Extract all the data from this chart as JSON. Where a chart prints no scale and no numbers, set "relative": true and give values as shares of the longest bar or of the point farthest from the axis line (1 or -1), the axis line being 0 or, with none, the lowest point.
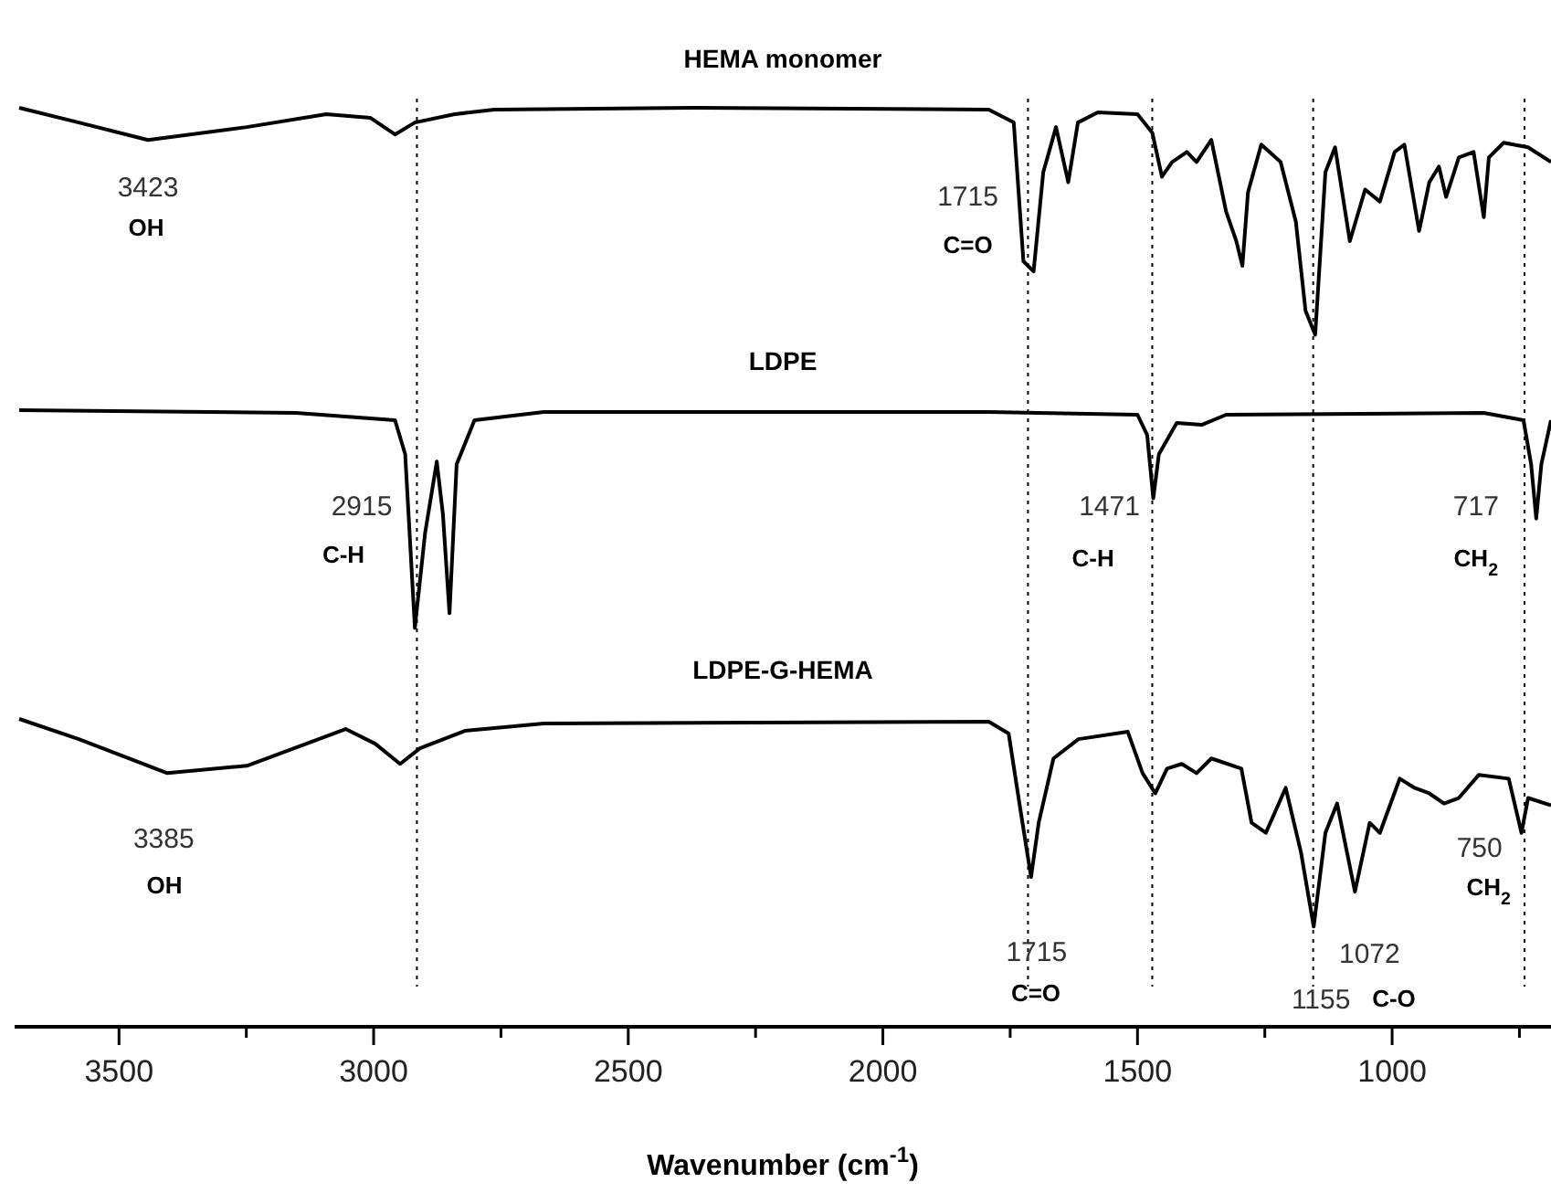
{
  "chart_data": {
    "type": "line",
    "relative": true,
    "xlabel": "Wavenumber (cm$^{-1}$)",
    "xlim": [
      3705,
      688
    ],
    "xticks": [
      3500,
      {
        "value": 3250,
        "label": null
      },
      3000,
      {
        "value": 2750,
        "label": null
      },
      2500,
      {
        "value": 2250,
        "label": null
      },
      2000,
      {
        "value": 1750,
        "label": null
      },
      1500,
      {
        "value": 1250,
        "label": null
      },
      1000,
      {
        "value": 750,
        "label": null
      }
    ],
    "line_style": "solid",
    "series": [
      {
        "name": "HEMA monomer",
        "color": "#000000",
        "x": [
          3696,
          3579,
          3443,
          3249,
          3093,
          3006,
          2958,
          2919,
          2841,
          2763,
          2375,
          1792,
          1743,
          1724,
          1704,
          1685,
          1660,
          1636,
          1617,
          1578,
          1500,
          1471,
          1452,
          1432,
          1403,
          1384,
          1355,
          1326,
          1306,
          1294,
          1283,
          1257,
          1219,
          1189,
          1170,
          1151,
          1131,
          1112,
          1083,
          1053,
          1024,
          995,
          976,
          947,
          927,
          908,
          894,
          869,
          840,
          820,
          810,
          781,
          733,
          688
        ],
        "values": [
          1.0,
          0.984,
          0.965,
          0.979,
          0.993,
          0.989,
          0.971,
          0.984,
          0.993,
          0.998,
          1.0,
          0.998,
          0.984,
          0.833,
          0.822,
          0.93,
          0.979,
          0.919,
          0.984,
          0.995,
          0.993,
          0.973,
          0.925,
          0.941,
          0.952,
          0.941,
          0.965,
          0.887,
          0.855,
          0.828,
          0.908,
          0.96,
          0.941,
          0.876,
          0.779,
          0.753,
          0.93,
          0.957,
          0.855,
          0.911,
          0.898,
          0.952,
          0.96,
          0.866,
          0.919,
          0.936,
          0.903,
          0.946,
          0.952,
          0.881,
          0.946,
          0.962,
          0.957,
          0.941
        ]
      },
      {
        "name": "LDPE",
        "color": "#000000",
        "x": [
          3696,
          3152,
          2958,
          2938,
          2919,
          2899,
          2876,
          2864,
          2851,
          2837,
          2802,
          2666,
          1792,
          1500,
          1481,
          1469,
          1458,
          1423,
          1374,
          1326,
          820,
          742,
          727,
          717,
          707,
          688
        ],
        "values": [
          0.671,
          0.668,
          0.66,
          0.623,
          0.434,
          0.537,
          0.615,
          0.558,
          0.45,
          0.612,
          0.66,
          0.669,
          0.669,
          0.666,
          0.644,
          0.575,
          0.623,
          0.657,
          0.655,
          0.666,
          0.668,
          0.66,
          0.612,
          0.553,
          0.612,
          0.66
        ]
      },
      {
        "name": "LDPE-G-HEMA",
        "color": "#000000",
        "x": [
          3696,
          3579,
          3405,
          3249,
          3055,
          2997,
          2948,
          2909,
          2821,
          2666,
          1792,
          1753,
          1729,
          1709,
          1694,
          1665,
          1616,
          1519,
          1490,
          1465,
          1442,
          1413,
          1384,
          1355,
          1296,
          1276,
          1248,
          1209,
          1179,
          1154,
          1131,
          1108,
          1073,
          1044,
          1024,
          985,
          956,
          927,
          898,
          869,
          830,
          771,
          746,
          733,
          688
        ],
        "values": [
          0.335,
          0.313,
          0.276,
          0.284,
          0.324,
          0.308,
          0.286,
          0.303,
          0.322,
          0.33,
          0.332,
          0.319,
          0.233,
          0.163,
          0.222,
          0.292,
          0.313,
          0.321,
          0.276,
          0.254,
          0.281,
          0.286,
          0.276,
          0.292,
          0.281,
          0.222,
          0.211,
          0.26,
          0.19,
          0.109,
          0.211,
          0.243,
          0.147,
          0.222,
          0.211,
          0.27,
          0.26,
          0.254,
          0.243,
          0.249,
          0.274,
          0.27,
          0.211,
          0.249,
          0.241
        ]
      }
    ],
    "ref_lines": [
      {
        "axis": "x",
        "value": 2915,
        "line_style": "dotted"
      },
      {
        "axis": "x",
        "value": 1715,
        "line_style": "dotted"
      },
      {
        "axis": "x",
        "value": 1471,
        "line_style": "dotted"
      },
      {
        "axis": "x",
        "value": 1155,
        "line_style": "dotted"
      },
      {
        "axis": "x",
        "value": 740,
        "line_style": "dotted"
      }
    ],
    "annotations": [
      {
        "text": "3423",
        "x": 3443,
        "y": 0.965
      },
      "OH",
      {
        "text": "1715",
        "x": 1704,
        "y": 0.822
      },
      {
        "text": "C=O",
        "x": 1704,
        "y": 0.822
      },
      "2915",
      "C-H",
      {
        "text": "1471",
        "x": 1469,
        "y": 0.575
      },
      {
        "text": "C-H",
        "x": 1469,
        "y": 0.575
      },
      {
        "text": "717",
        "x": 717,
        "y": 0.553
      },
      {
        "text": "CH$_{2}$",
        "x": 717,
        "y": 0.553
      },
      {
        "text": "3385",
        "x": 3405,
        "y": 0.276
      },
      "OH",
      {
        "text": "1715",
        "x": 1709,
        "y": 0.163
      },
      "C=O",
      {
        "text": "1155",
        "x": 1154,
        "y": 0.109
      },
      "C-O",
      {
        "text": "1072",
        "x": 1073,
        "y": 0.147
      },
      {
        "text": "750",
        "x": 746,
        "y": 0.211
      },
      {
        "text": "CH$_{2}$",
        "x": 746,
        "y": 0.211
      }
    ]
  }
}
